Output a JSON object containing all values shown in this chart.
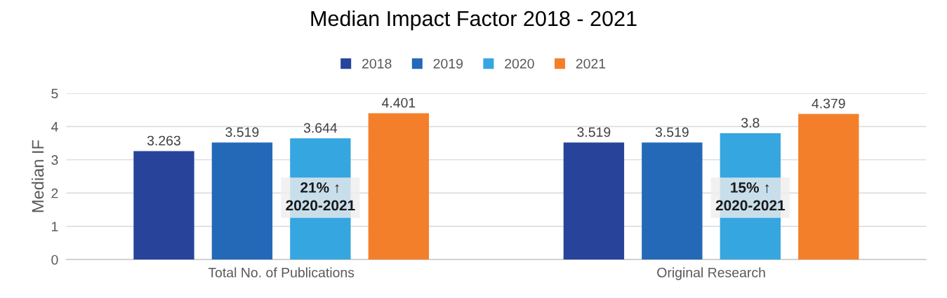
{
  "chart_data": {
    "type": "bar",
    "title": "Median Impact Factor 2018 - 2021",
    "ylabel": "Median IF",
    "categories": [
      "Total No. of Publications",
      "Original Research"
    ],
    "series": [
      {
        "name": "2018",
        "color": "#27449a",
        "values": [
          3.263,
          3.519
        ]
      },
      {
        "name": "2019",
        "color": "#2369b8",
        "values": [
          3.519,
          3.519
        ]
      },
      {
        "name": "2020",
        "color": "#36a6e0",
        "values": [
          3.644,
          3.8
        ]
      },
      {
        "name": "2021",
        "color": "#f47f2a",
        "values": [
          4.401,
          4.379
        ]
      }
    ],
    "ylim": [
      0,
      5
    ],
    "yticks": [
      0,
      1,
      2,
      3,
      4,
      5
    ],
    "grid": "y",
    "legend": "top",
    "data_labels": true,
    "annotations": [
      "21% ↑\n2020-2021",
      "15% ↑\n2020-2021"
    ]
  }
}
